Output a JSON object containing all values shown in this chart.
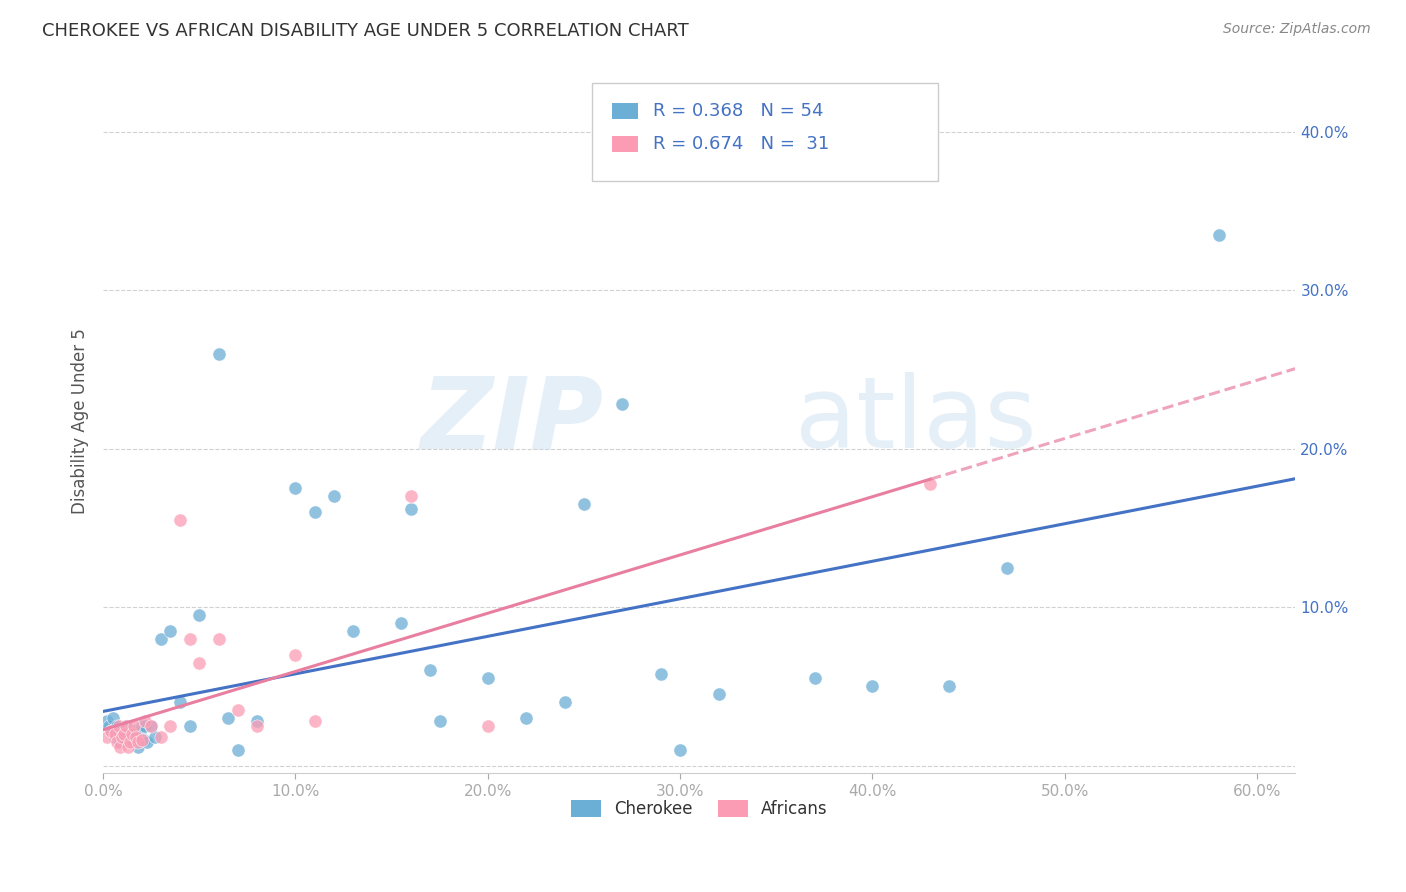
{
  "title": "CHEROKEE VS AFRICAN DISABILITY AGE UNDER 5 CORRELATION CHART",
  "source": "Source: ZipAtlas.com",
  "ylabel": "Disability Age Under 5",
  "xlim": [
    0.0,
    0.62
  ],
  "ylim": [
    -0.005,
    0.44
  ],
  "xticks": [
    0.0,
    0.1,
    0.2,
    0.3,
    0.4,
    0.5,
    0.6
  ],
  "yticks": [
    0.0,
    0.1,
    0.2,
    0.3,
    0.4
  ],
  "xtick_labels": [
    "0.0%",
    "10.0%",
    "20.0%",
    "30.0%",
    "40.0%",
    "50.0%",
    "60.0%"
  ],
  "ytick_labels_right": [
    "",
    "10.0%",
    "20.0%",
    "30.0%",
    "40.0%"
  ],
  "cherokee_color": "#6baed6",
  "african_color": "#fc9cb4",
  "cherokee_line_color": "#4472c4",
  "african_line_color": "#e87fa0",
  "cherokee_R": 0.368,
  "cherokee_N": 54,
  "african_R": 0.674,
  "african_N": 31,
  "legend_text_color": "#4472c4",
  "cherokee_x": [
    0.002,
    0.003,
    0.004,
    0.005,
    0.006,
    0.007,
    0.008,
    0.009,
    0.01,
    0.011,
    0.012,
    0.013,
    0.014,
    0.015,
    0.016,
    0.017,
    0.018,
    0.019,
    0.02,
    0.021,
    0.022,
    0.023,
    0.025,
    0.027,
    0.03,
    0.035,
    0.04,
    0.045,
    0.05,
    0.06,
    0.065,
    0.07,
    0.08,
    0.1,
    0.11,
    0.12,
    0.13,
    0.155,
    0.16,
    0.17,
    0.175,
    0.2,
    0.22,
    0.24,
    0.25,
    0.27,
    0.29,
    0.3,
    0.32,
    0.37,
    0.4,
    0.44,
    0.47,
    0.58
  ],
  "cherokee_y": [
    0.028,
    0.025,
    0.022,
    0.03,
    0.018,
    0.025,
    0.022,
    0.015,
    0.02,
    0.018,
    0.025,
    0.02,
    0.018,
    0.016,
    0.022,
    0.02,
    0.012,
    0.022,
    0.025,
    0.016,
    0.025,
    0.015,
    0.025,
    0.018,
    0.08,
    0.085,
    0.04,
    0.025,
    0.095,
    0.26,
    0.03,
    0.01,
    0.028,
    0.175,
    0.16,
    0.17,
    0.085,
    0.09,
    0.162,
    0.06,
    0.028,
    0.055,
    0.03,
    0.04,
    0.165,
    0.228,
    0.058,
    0.01,
    0.045,
    0.055,
    0.05,
    0.05,
    0.125,
    0.335
  ],
  "african_x": [
    0.002,
    0.004,
    0.006,
    0.007,
    0.008,
    0.009,
    0.01,
    0.011,
    0.012,
    0.013,
    0.014,
    0.015,
    0.016,
    0.017,
    0.018,
    0.02,
    0.022,
    0.025,
    0.03,
    0.035,
    0.04,
    0.045,
    0.05,
    0.06,
    0.07,
    0.08,
    0.1,
    0.11,
    0.16,
    0.2,
    0.43
  ],
  "african_y": [
    0.018,
    0.022,
    0.02,
    0.015,
    0.025,
    0.012,
    0.018,
    0.02,
    0.025,
    0.012,
    0.015,
    0.02,
    0.025,
    0.018,
    0.015,
    0.016,
    0.028,
    0.025,
    0.018,
    0.025,
    0.155,
    0.08,
    0.065,
    0.08,
    0.035,
    0.025,
    0.07,
    0.028,
    0.17,
    0.025,
    0.178
  ],
  "background_color": "#ffffff",
  "grid_color": "#cccccc",
  "watermark_zip": "ZIP",
  "watermark_atlas": "atlas",
  "legend_label_cherokee": "Cherokee",
  "legend_label_african": "Africans"
}
